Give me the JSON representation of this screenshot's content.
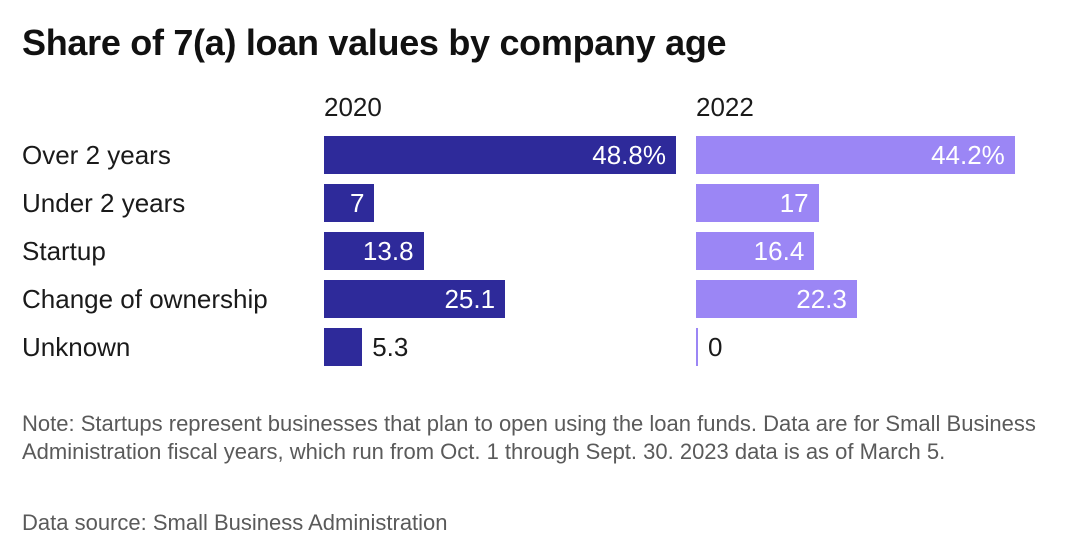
{
  "title": "Share of 7(a) loan values by company age",
  "note": "Note: Startups represent businesses that plan to open using the loan funds. Data are for Small Business Administration fiscal years, which run from Oct. 1 through Sept. 30. 2023 data is as of March 5.",
  "source": "Data source: Small Business Administration",
  "colors": {
    "2020": "#2e2a9a",
    "2022": "#9b86f5"
  },
  "chart_data": {
    "type": "bar",
    "orientation": "horizontal",
    "title": "Share of 7(a) loan values by company age",
    "categories": [
      "Over 2 years",
      "Under 2 years",
      "Startup",
      "Change of ownership",
      "Unknown"
    ],
    "series": [
      {
        "name": "2020",
        "values": [
          48.8,
          7,
          13.8,
          25.1,
          5.3
        ],
        "labels": [
          "48.8%",
          "7",
          "13.8",
          "25.1",
          "5.3"
        ]
      },
      {
        "name": "2022",
        "values": [
          44.2,
          17,
          16.4,
          22.3,
          0
        ],
        "labels": [
          "44.2%",
          "17",
          "16.4",
          "22.3",
          "0"
        ]
      }
    ],
    "xlim": [
      0,
      48.8
    ],
    "grid": false,
    "legend": "none"
  }
}
